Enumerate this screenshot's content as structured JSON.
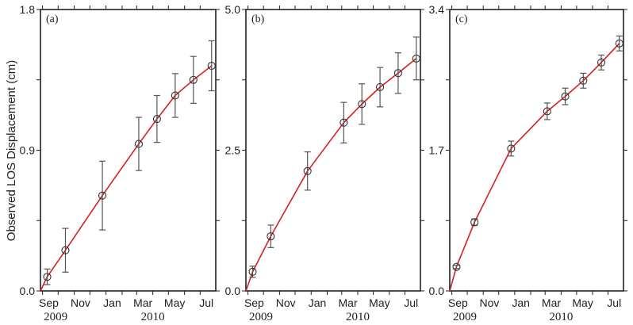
{
  "chart_data": [
    {
      "type": "line",
      "panel_label": "(a)",
      "title": "",
      "xlabel": "",
      "ylabel": "Observed LOS Displacement (cm)",
      "ylim": [
        0.0,
        1.8
      ],
      "yticks_labeled": [
        "0.0",
        "0.9",
        "1.8"
      ],
      "xtick_labels": [
        "Sep",
        "Nov",
        "Jan",
        "Mar",
        "May",
        "Jul"
      ],
      "year_labels": [
        "2009",
        "2010"
      ],
      "grid": false,
      "series": [
        {
          "name": "observed",
          "marker": "open-circle",
          "x": [
            "2009-09-10",
            "2009-10-15",
            "2009-12-25",
            "2010-03-05",
            "2010-04-09",
            "2010-05-14",
            "2010-06-18",
            "2010-07-23"
          ],
          "values": [
            0.09,
            0.26,
            0.61,
            0.94,
            1.1,
            1.25,
            1.35,
            1.44
          ],
          "error": [
            0.05,
            0.14,
            0.22,
            0.17,
            0.15,
            0.14,
            0.15,
            0.16
          ]
        },
        {
          "name": "model-fit",
          "style": "red-line",
          "color": "#d42020"
        }
      ]
    },
    {
      "type": "line",
      "panel_label": "(b)",
      "ylim": [
        0.0,
        5.0
      ],
      "yticks_labeled": [
        "0.0",
        "2.5",
        "5.0"
      ],
      "xtick_labels": [
        "Sep",
        "Nov",
        "Jan",
        "Mar",
        "May",
        "Jul"
      ],
      "year_labels": [
        "2009",
        "2010"
      ],
      "grid": false,
      "series": [
        {
          "name": "observed",
          "marker": "open-circle",
          "x": [
            "2009-09-10",
            "2009-10-15",
            "2009-12-25",
            "2010-03-05",
            "2010-04-09",
            "2010-05-14",
            "2010-06-18",
            "2010-07-23"
          ],
          "values": [
            0.34,
            0.97,
            2.13,
            2.99,
            3.32,
            3.62,
            3.87,
            4.13
          ],
          "error": [
            0.1,
            0.2,
            0.34,
            0.36,
            0.36,
            0.35,
            0.36,
            0.38
          ]
        },
        {
          "name": "model-fit",
          "style": "red-line",
          "color": "#d42020"
        }
      ]
    },
    {
      "type": "line",
      "panel_label": "(c)",
      "ylim": [
        0.0,
        3.4
      ],
      "yticks_labeled": [
        "0.0",
        "1.7",
        "3.4"
      ],
      "xtick_labels": [
        "Sep",
        "Nov",
        "Jan",
        "Mar",
        "May",
        "Jul"
      ],
      "year_labels": [
        "2009",
        "2010"
      ],
      "grid": false,
      "series": [
        {
          "name": "observed",
          "marker": "open-circle",
          "x": [
            "2009-09-10",
            "2009-10-15",
            "2009-12-25",
            "2010-03-05",
            "2010-04-09",
            "2010-05-14",
            "2010-06-18",
            "2010-07-23"
          ],
          "values": [
            0.29,
            0.83,
            1.72,
            2.17,
            2.35,
            2.54,
            2.76,
            2.99
          ],
          "error": [
            0.02,
            0.04,
            0.09,
            0.1,
            0.1,
            0.09,
            0.09,
            0.09
          ]
        },
        {
          "name": "model-fit",
          "style": "red-line",
          "color": "#d42020"
        }
      ]
    }
  ],
  "colors": {
    "fit_line": "#d42020",
    "markers": "#333333",
    "error_bars": "#555555",
    "axes": "#222222"
  },
  "axis_title": "Observed LOS Displacement (cm)"
}
